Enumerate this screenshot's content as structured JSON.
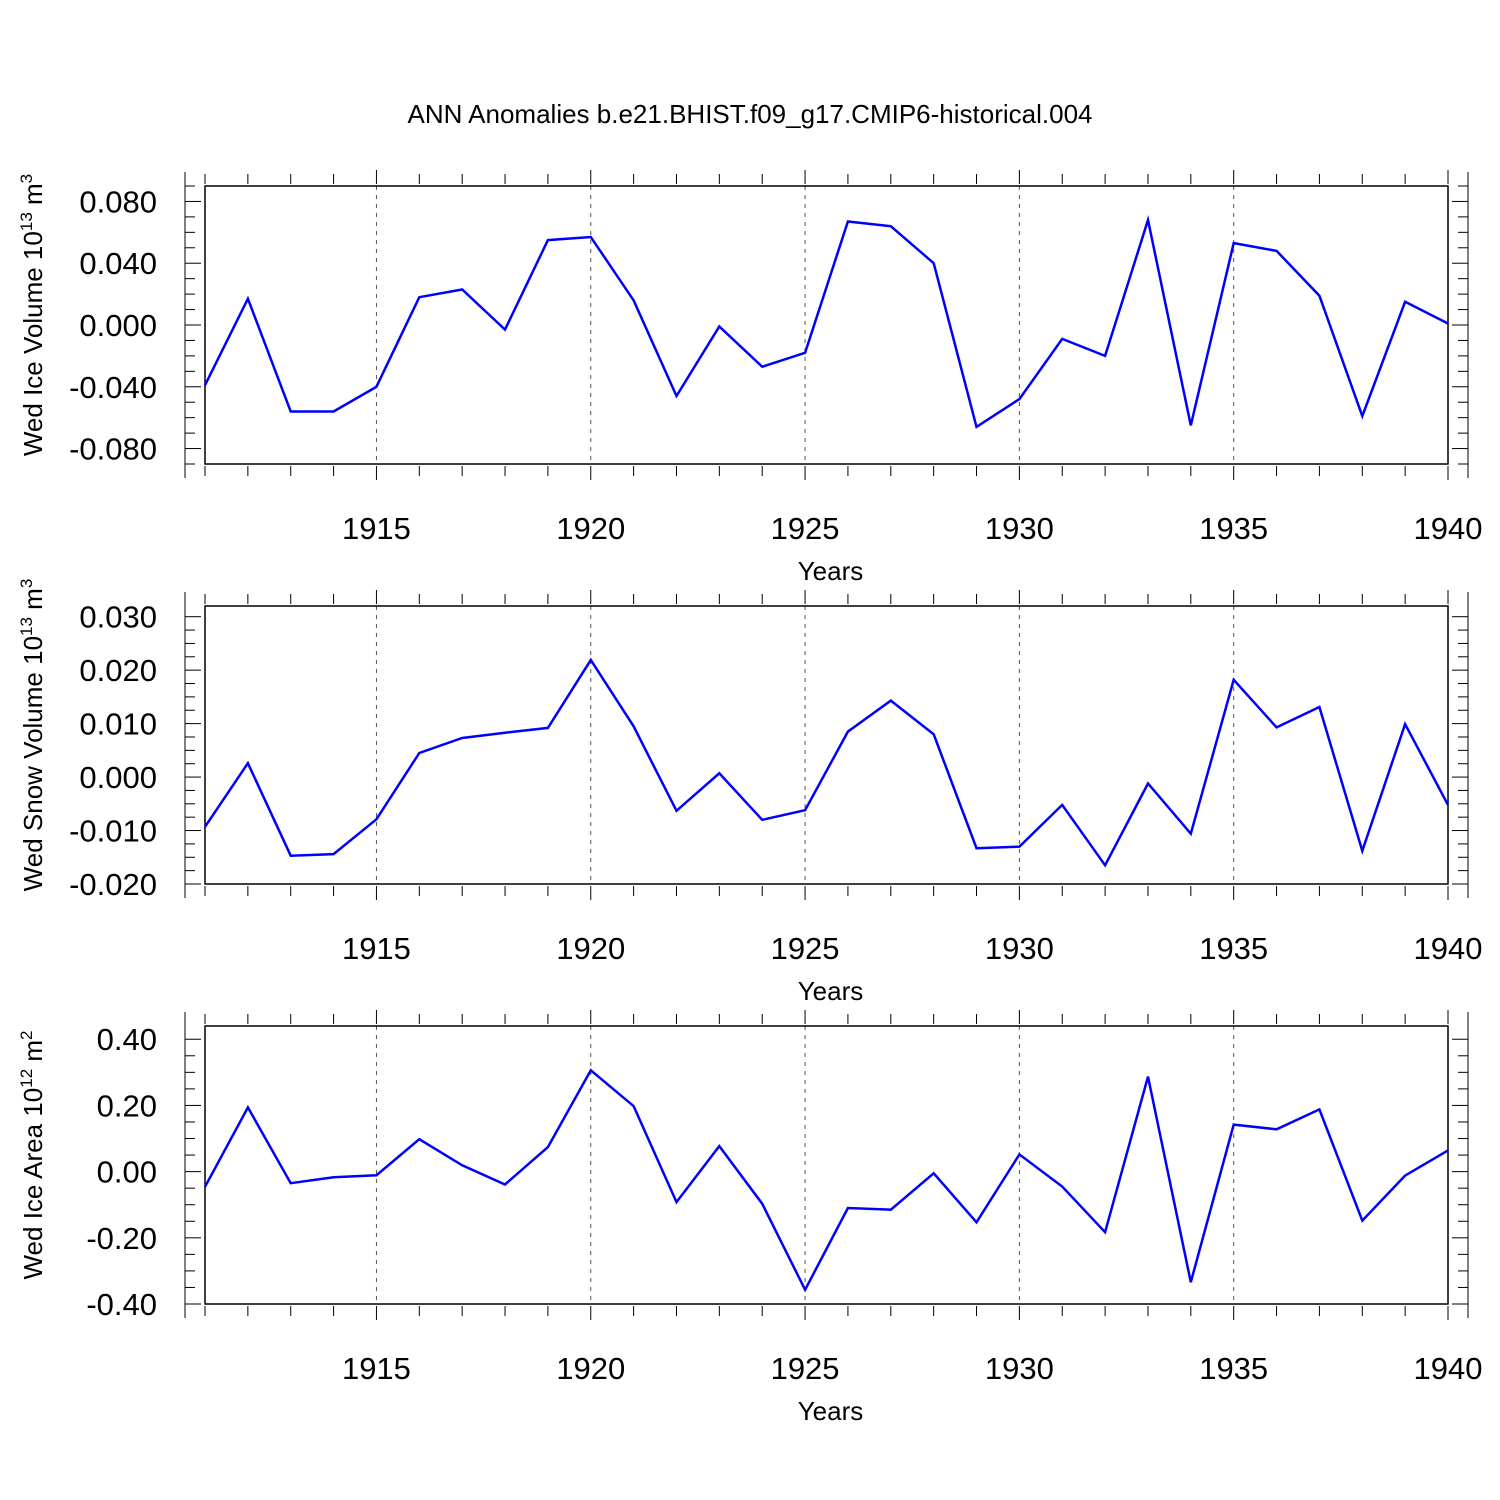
{
  "title": "ANN Anomalies b.e21.BHIST.f09_g17.CMIP6-historical.004",
  "line_color": "#0000ff",
  "chart_data": [
    {
      "type": "line",
      "ylabel_main": "Wed Ice Volume 10",
      "ylabel_sup": "13",
      "ylabel_unit": " m",
      "ylabel_unit_sup": "3",
      "xlabel": "Years",
      "xlim": [
        1911,
        1940
      ],
      "ylim": [
        -0.09,
        0.09
      ],
      "yticks": [
        -0.08,
        -0.04,
        0.0,
        0.04,
        0.08
      ],
      "ytick_labels": [
        "-0.080",
        "-0.040",
        "0.000",
        "0.040",
        "0.080"
      ],
      "xticks": [
        1915,
        1920,
        1925,
        1930,
        1935,
        1940
      ],
      "xtick_labels": [
        "1915",
        "1920",
        "1925",
        "1930",
        "1935",
        "1940"
      ],
      "x": [
        1911,
        1912,
        1913,
        1914,
        1915,
        1916,
        1917,
        1918,
        1919,
        1920,
        1921,
        1922,
        1923,
        1924,
        1925,
        1926,
        1927,
        1928,
        1929,
        1930,
        1931,
        1932,
        1933,
        1934,
        1935,
        1936,
        1937,
        1938,
        1939,
        1940
      ],
      "values": [
        -0.039,
        0.017,
        -0.056,
        -0.056,
        -0.04,
        0.018,
        0.023,
        -0.003,
        0.055,
        0.057,
        0.016,
        -0.046,
        -0.001,
        -0.027,
        -0.018,
        0.067,
        0.064,
        0.04,
        -0.066,
        -0.048,
        -0.009,
        -0.02,
        0.068,
        -0.065,
        0.053,
        0.048,
        0.019,
        -0.059,
        0.015,
        0.001
      ]
    },
    {
      "type": "line",
      "ylabel_main": "Wed Snow Volume 10",
      "ylabel_sup": "13",
      "ylabel_unit": " m",
      "ylabel_unit_sup": "3",
      "xlabel": "Years",
      "xlim": [
        1911,
        1940
      ],
      "ylim": [
        -0.02,
        0.032
      ],
      "yticks": [
        -0.02,
        -0.01,
        0.0,
        0.01,
        0.02,
        0.03
      ],
      "ytick_labels": [
        "-0.020",
        "-0.010",
        "0.000",
        "0.010",
        "0.020",
        "0.030"
      ],
      "xticks": [
        1915,
        1920,
        1925,
        1930,
        1935,
        1940
      ],
      "xtick_labels": [
        "1915",
        "1920",
        "1925",
        "1930",
        "1935",
        "1940"
      ],
      "x": [
        1911,
        1912,
        1913,
        1914,
        1915,
        1916,
        1917,
        1918,
        1919,
        1920,
        1921,
        1922,
        1923,
        1924,
        1925,
        1926,
        1927,
        1928,
        1929,
        1930,
        1931,
        1932,
        1933,
        1934,
        1935,
        1936,
        1937,
        1938,
        1939,
        1940
      ],
      "values": [
        -0.0093,
        0.0026,
        -0.0147,
        -0.0144,
        -0.0079,
        0.0045,
        0.0073,
        0.0083,
        0.0092,
        0.0219,
        0.0095,
        -0.0063,
        0.0007,
        -0.008,
        -0.0062,
        0.0085,
        0.0143,
        0.008,
        -0.0133,
        -0.013,
        -0.0052,
        -0.0165,
        -0.0012,
        -0.0106,
        0.0182,
        0.0093,
        0.0131,
        -0.0138,
        0.0099,
        -0.0052
      ]
    },
    {
      "type": "line",
      "ylabel_main": "Wed Ice Area 10",
      "ylabel_sup": "12",
      "ylabel_unit": " m",
      "ylabel_unit_sup": "2",
      "xlabel": "Years",
      "xlim": [
        1911,
        1940
      ],
      "ylim": [
        -0.4,
        0.44
      ],
      "yticks": [
        -0.4,
        -0.2,
        0.0,
        0.2,
        0.4
      ],
      "ytick_labels": [
        "-0.40",
        "-0.20",
        "0.00",
        "0.20",
        "0.40"
      ],
      "xticks": [
        1915,
        1920,
        1925,
        1930,
        1935,
        1940
      ],
      "xtick_labels": [
        "1915",
        "1920",
        "1925",
        "1930",
        "1935",
        "1940"
      ],
      "x": [
        1911,
        1912,
        1913,
        1914,
        1915,
        1916,
        1917,
        1918,
        1919,
        1920,
        1921,
        1922,
        1923,
        1924,
        1925,
        1926,
        1927,
        1928,
        1929,
        1930,
        1931,
        1932,
        1933,
        1934,
        1935,
        1936,
        1937,
        1938,
        1939,
        1940
      ],
      "values": [
        -0.046,
        0.194,
        -0.035,
        -0.017,
        -0.011,
        0.098,
        0.019,
        -0.039,
        0.074,
        0.306,
        0.198,
        -0.092,
        0.077,
        -0.097,
        -0.357,
        -0.11,
        -0.115,
        -0.005,
        -0.153,
        0.052,
        -0.045,
        -0.183,
        0.287,
        -0.334,
        0.142,
        0.128,
        0.188,
        -0.148,
        -0.012,
        0.064
      ]
    }
  ]
}
